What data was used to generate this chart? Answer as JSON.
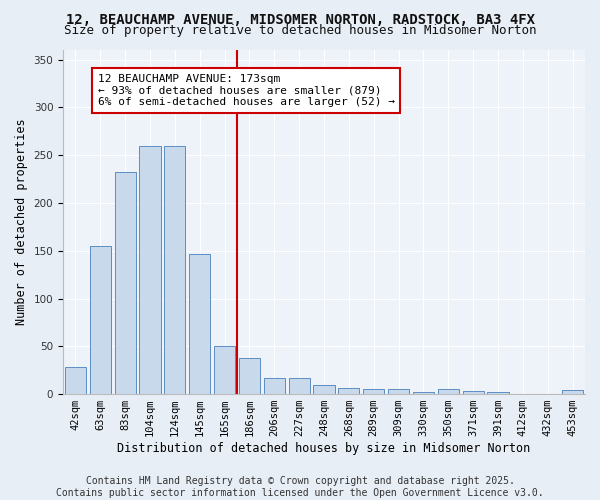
{
  "title1": "12, BEAUCHAMP AVENUE, MIDSOMER NORTON, RADSTOCK, BA3 4FX",
  "title2": "Size of property relative to detached houses in Midsomer Norton",
  "xlabel": "Distribution of detached houses by size in Midsomer Norton",
  "ylabel": "Number of detached properties",
  "bar_labels": [
    "42sqm",
    "63sqm",
    "83sqm",
    "104sqm",
    "124sqm",
    "145sqm",
    "165sqm",
    "186sqm",
    "206sqm",
    "227sqm",
    "248sqm",
    "268sqm",
    "289sqm",
    "309sqm",
    "330sqm",
    "350sqm",
    "371sqm",
    "391sqm",
    "412sqm",
    "432sqm",
    "453sqm"
  ],
  "bar_values": [
    28,
    155,
    232,
    260,
    260,
    147,
    50,
    38,
    17,
    17,
    10,
    6,
    5,
    5,
    2,
    5,
    3,
    2,
    0,
    0,
    4
  ],
  "bar_color": "#c9d9ec",
  "bar_edge_color": "#5b8ec4",
  "vline_x": 7.0,
  "vline_color": "#cc0000",
  "annotation_text": "12 BEAUCHAMP AVENUE: 173sqm\n← 93% of detached houses are smaller (879)\n6% of semi-detached houses are larger (52) →",
  "annotation_box_color": "#cc0000",
  "ylim": [
    0,
    360
  ],
  "yticks": [
    0,
    50,
    100,
    150,
    200,
    250,
    300,
    350
  ],
  "bg_color": "#e8eef6",
  "plot_bg_color": "#eef2f9",
  "footer1": "Contains HM Land Registry data © Crown copyright and database right 2025.",
  "footer2": "Contains public sector information licensed under the Open Government Licence v3.0.",
  "title_fontsize": 10,
  "subtitle_fontsize": 9,
  "tick_fontsize": 7.5,
  "annotation_fontsize": 8,
  "ylabel_fontsize": 8.5,
  "xlabel_fontsize": 8.5,
  "footer_fontsize": 7
}
